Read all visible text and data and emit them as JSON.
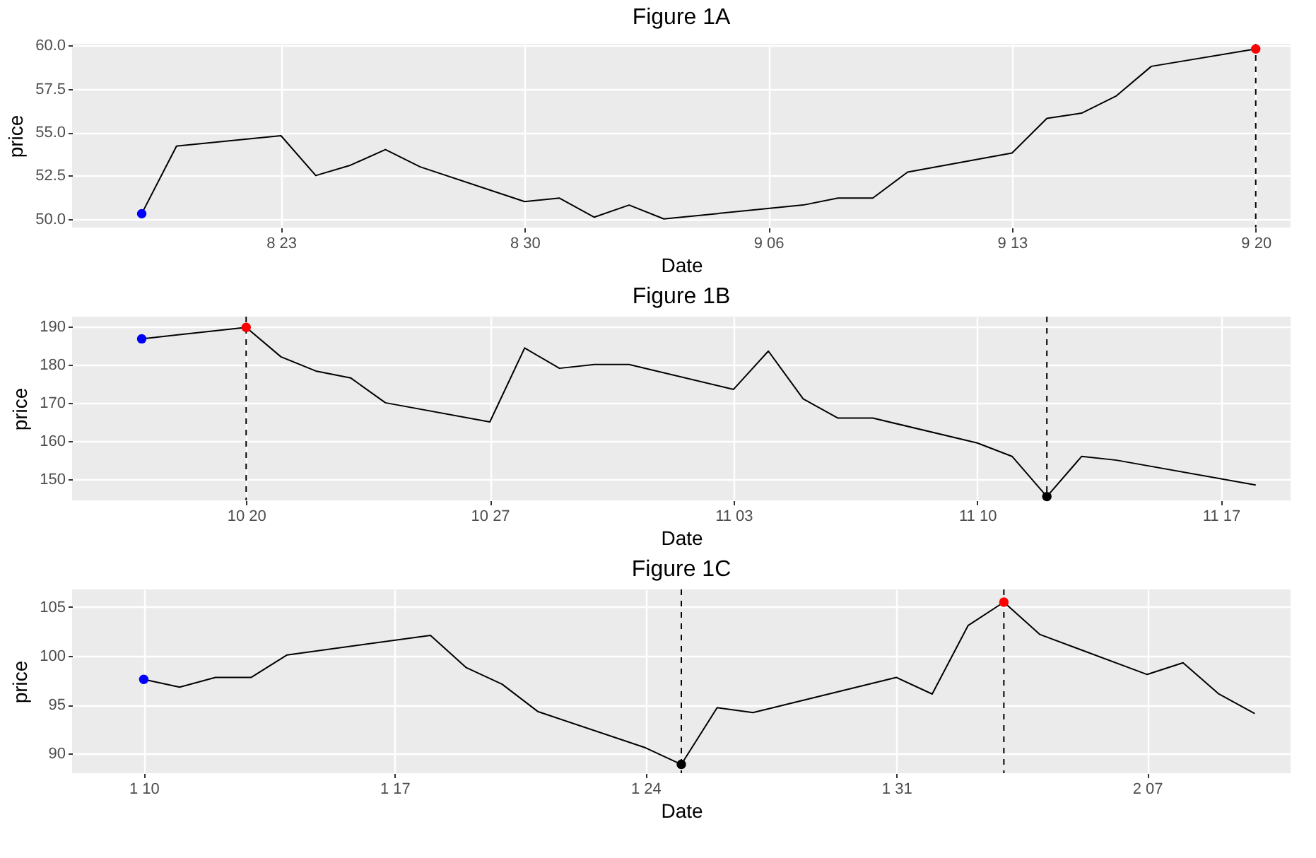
{
  "chart_data": [
    {
      "type": "line",
      "title": "Figure 1A",
      "xlabel": "Date",
      "ylabel": "price",
      "grid": true,
      "line_style": "solid",
      "xlim": [
        "--08-17",
        "--09-21"
      ],
      "xticks": [
        {
          "value": "--08-23",
          "label": "8 23"
        },
        {
          "value": "--08-30",
          "label": "8 30"
        },
        {
          "value": "--09-06",
          "label": "9 06"
        },
        {
          "value": "--09-13",
          "label": "9 13"
        },
        {
          "value": "--09-20",
          "label": "9 20"
        }
      ],
      "ylim": [
        49.5,
        60.1
      ],
      "yticks": [
        {
          "value": 50,
          "label": "50.0"
        },
        52.5,
        {
          "value": 55,
          "label": "55.0"
        },
        57.5,
        {
          "value": 60,
          "label": "60.0"
        }
      ],
      "series": [
        {
          "color": "#000000",
          "x": [
            "--08-19",
            "--08-20",
            "--08-23",
            "--08-24",
            "--08-25",
            "--08-26",
            "--08-27",
            "--08-30",
            "--08-31",
            "--09-01",
            "--09-02",
            "--09-03",
            "--09-07",
            "--09-08",
            "--09-09",
            "--09-10",
            "--09-13",
            "--09-14",
            "--09-15",
            "--09-16",
            "--09-17",
            "--09-20"
          ],
          "values": [
            50.3,
            54.2,
            54.8,
            52.5,
            53.1,
            54.0,
            53.0,
            51.0,
            51.2,
            50.1,
            50.8,
            50.0,
            50.8,
            51.2,
            51.2,
            52.7,
            53.8,
            55.8,
            56.1,
            57.1,
            58.8,
            59.8
          ]
        },
        {
          "type": "scatter",
          "marker": "circle",
          "color": "#0000ff",
          "x": [
            "--08-19"
          ],
          "values": [
            50.3
          ]
        },
        {
          "type": "scatter",
          "marker": "circle",
          "color": "#ff0000",
          "x": [
            "--09-20"
          ],
          "values": [
            59.8
          ]
        }
      ],
      "ref_lines": [
        {
          "axis": "x",
          "value": "--09-20",
          "line_style": "dashed",
          "color": "#000000"
        }
      ]
    },
    {
      "type": "line",
      "title": "Figure 1B",
      "xlabel": "Date",
      "ylabel": "price",
      "grid": true,
      "line_style": "solid",
      "xlim": [
        "--10-15",
        "--11-19"
      ],
      "xticks": [
        {
          "value": "--10-20",
          "label": "10 20"
        },
        {
          "value": "--10-27",
          "label": "10 27"
        },
        {
          "value": "--11-03",
          "label": "11 03"
        },
        {
          "value": "--11-10",
          "label": "11 10"
        },
        {
          "value": "--11-17",
          "label": "11 17"
        }
      ],
      "ylim": [
        144.5,
        192.5
      ],
      "yticks": [
        150,
        160,
        170,
        180,
        190
      ],
      "series": [
        {
          "color": "#000000",
          "x": [
            "--10-17",
            "--10-20",
            "--10-21",
            "--10-22",
            "--10-23",
            "--10-24",
            "--10-27",
            "--10-28",
            "--10-29",
            "--10-30",
            "--10-31",
            "--11-03",
            "--11-04",
            "--11-05",
            "--11-06",
            "--11-07",
            "--11-10",
            "--11-11",
            "--11-12",
            "--11-13",
            "--11-14",
            "--11-18"
          ],
          "values": [
            186.7,
            189.7,
            182,
            178.3,
            176.5,
            170,
            165,
            184.3,
            179,
            180,
            180,
            173.5,
            183.5,
            171,
            166,
            166,
            159.5,
            156,
            145.5,
            156,
            155,
            148.5
          ]
        },
        {
          "type": "scatter",
          "marker": "circle",
          "color": "#0000ff",
          "x": [
            "--10-17"
          ],
          "values": [
            186.7
          ]
        },
        {
          "type": "scatter",
          "marker": "circle",
          "color": "#ff0000",
          "x": [
            "--10-20"
          ],
          "values": [
            189.7
          ]
        },
        {
          "type": "scatter",
          "marker": "circle",
          "color": "#000000",
          "x": [
            "--11-12"
          ],
          "values": [
            145.5
          ]
        }
      ],
      "ref_lines": [
        {
          "axis": "x",
          "value": "--10-20",
          "line_style": "dashed",
          "color": "#000000"
        },
        {
          "axis": "x",
          "value": "--11-12",
          "line_style": "dashed",
          "color": "#000000"
        }
      ]
    },
    {
      "type": "line",
      "title": "Figure 1C",
      "xlabel": "Date",
      "ylabel": "price",
      "grid": true,
      "line_style": "solid",
      "xlim": [
        "--01-08",
        "--02-11"
      ],
      "xticks": [
        {
          "value": "--01-10",
          "label": "1 10"
        },
        {
          "value": "--01-17",
          "label": "1 17"
        },
        {
          "value": "--01-24",
          "label": "1 24"
        },
        {
          "value": "--01-31",
          "label": "1 31"
        },
        {
          "value": "--02-07",
          "label": "2 07"
        }
      ],
      "ylim": [
        88,
        106.8
      ],
      "yticks": [
        90,
        95,
        100,
        105
      ],
      "series": [
        {
          "color": "#000000",
          "x": [
            "--01-10",
            "--01-11",
            "--01-12",
            "--01-13",
            "--01-14",
            "--01-18",
            "--01-19",
            "--01-20",
            "--01-21",
            "--01-24",
            "--01-25",
            "--01-26",
            "--01-27",
            "--01-31",
            "--02-01",
            "--02-02",
            "--02-03",
            "--02-04",
            "--02-07",
            "--02-08",
            "--02-09",
            "--02-10"
          ],
          "values": [
            97.6,
            96.8,
            97.8,
            97.8,
            100.1,
            102.1,
            98.8,
            97.1,
            94.3,
            90.6,
            88.9,
            94.7,
            94.2,
            97.8,
            96.1,
            103.1,
            105.5,
            102.2,
            98.1,
            99.3,
            96.1,
            94.1
          ]
        },
        {
          "type": "scatter",
          "marker": "circle",
          "color": "#0000ff",
          "x": [
            "--01-10"
          ],
          "values": [
            97.6
          ]
        },
        {
          "type": "scatter",
          "marker": "circle",
          "color": "#ff0000",
          "x": [
            "--02-03"
          ],
          "values": [
            105.5
          ]
        },
        {
          "type": "scatter",
          "marker": "circle",
          "color": "#000000",
          "x": [
            "--01-25"
          ],
          "values": [
            88.9
          ]
        }
      ],
      "ref_lines": [
        {
          "axis": "x",
          "value": "--01-25",
          "line_style": "dashed",
          "color": "#000000"
        },
        {
          "axis": "x",
          "value": "--02-03",
          "line_style": "dashed",
          "color": "#000000"
        }
      ]
    }
  ]
}
